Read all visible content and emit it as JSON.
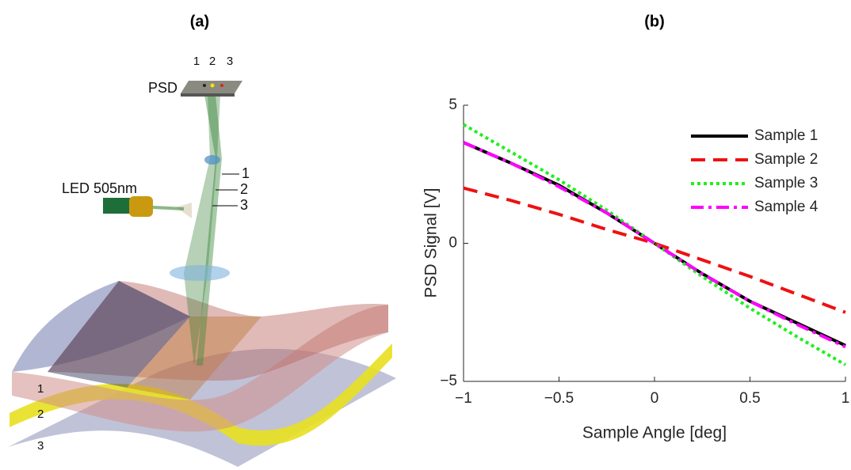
{
  "panel_a": {
    "title": "(a)",
    "psd_label": "PSD",
    "spot_labels": [
      "1",
      "2",
      "3"
    ],
    "led_label": "LED 505nm",
    "beam_labels": [
      "1",
      "2",
      "3"
    ],
    "surface_labels": [
      "1",
      "2",
      "3"
    ]
  },
  "chart_data": {
    "type": "line",
    "title": "(b)",
    "x_label": "Sample Angle [deg]",
    "y_label": "PSD Signal [V]",
    "x": [
      -1,
      -0.75,
      -0.5,
      -0.25,
      0,
      0.25,
      0.5,
      0.75,
      1
    ],
    "series": [
      {
        "name": "Sample 1",
        "color": "#000000",
        "style": "solid",
        "values": [
          3.65,
          2.9,
          2.1,
          1.1,
          0,
          -1.1,
          -2.1,
          -2.9,
          -3.7
        ]
      },
      {
        "name": "Sample 2",
        "color": "#ee1111",
        "style": "dashed",
        "values": [
          2.0,
          1.55,
          1.05,
          0.5,
          0,
          -0.6,
          -1.2,
          -1.85,
          -2.5
        ]
      },
      {
        "name": "Sample 3",
        "color": "#22ee22",
        "style": "dotted",
        "values": [
          4.3,
          3.3,
          2.3,
          1.2,
          0,
          -1.2,
          -2.35,
          -3.4,
          -4.4
        ]
      },
      {
        "name": "Sample 4",
        "color": "#ff00ff",
        "style": "dashdot",
        "values": [
          3.65,
          2.9,
          2.05,
          1.1,
          0,
          -1.1,
          -2.1,
          -2.95,
          -3.75
        ]
      }
    ],
    "xlim": [
      -1,
      1
    ],
    "ylim": [
      -5,
      5
    ],
    "xticks": [
      {
        "value": -1,
        "label": "−1"
      },
      {
        "value": -0.5,
        "label": "−0.5"
      },
      0,
      0.5,
      1
    ],
    "yticks": [
      {
        "value": -5,
        "label": "−5"
      },
      0,
      5
    ],
    "grid": false,
    "legend": "upper right"
  }
}
